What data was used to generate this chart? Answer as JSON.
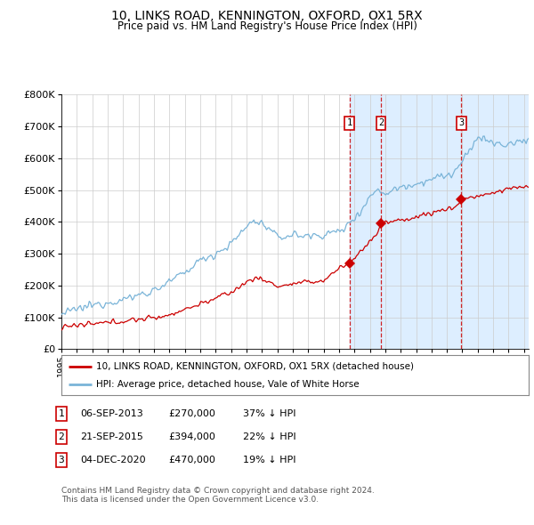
{
  "title": "10, LINKS ROAD, KENNINGTON, OXFORD, OX1 5RX",
  "subtitle": "Price paid vs. HM Land Registry's House Price Index (HPI)",
  "legend_line1": "10, LINKS ROAD, KENNINGTON, OXFORD, OX1 5RX (detached house)",
  "legend_line2": "HPI: Average price, detached house, Vale of White Horse",
  "transactions": [
    {
      "num": 1,
      "date": "06-SEP-2013",
      "price": "£270,000",
      "pct": "37% ↓ HPI",
      "year": 2013.68
    },
    {
      "num": 2,
      "date": "21-SEP-2015",
      "price": "£394,000",
      "pct": "22% ↓ HPI",
      "year": 2015.72
    },
    {
      "num": 3,
      "date": "04-DEC-2020",
      "price": "£470,000",
      "pct": "19% ↓ HPI",
      "year": 2020.92
    }
  ],
  "transaction_values": [
    270000,
    394000,
    470000
  ],
  "footnote1": "Contains HM Land Registry data © Crown copyright and database right 2024.",
  "footnote2": "This data is licensed under the Open Government Licence v3.0.",
  "hpi_color": "#7ab4d8",
  "price_color": "#cc0000",
  "dot_color": "#cc0000",
  "vline_color": "#cc0000",
  "highlight_color": "#ddeeff",
  "background_color": "#ffffff",
  "grid_color": "#cccccc",
  "ylim": [
    0,
    800000
  ],
  "yticks": [
    0,
    100000,
    200000,
    300000,
    400000,
    500000,
    600000,
    700000,
    800000
  ],
  "xlim_start": 1995.0,
  "xlim_end": 2025.3
}
